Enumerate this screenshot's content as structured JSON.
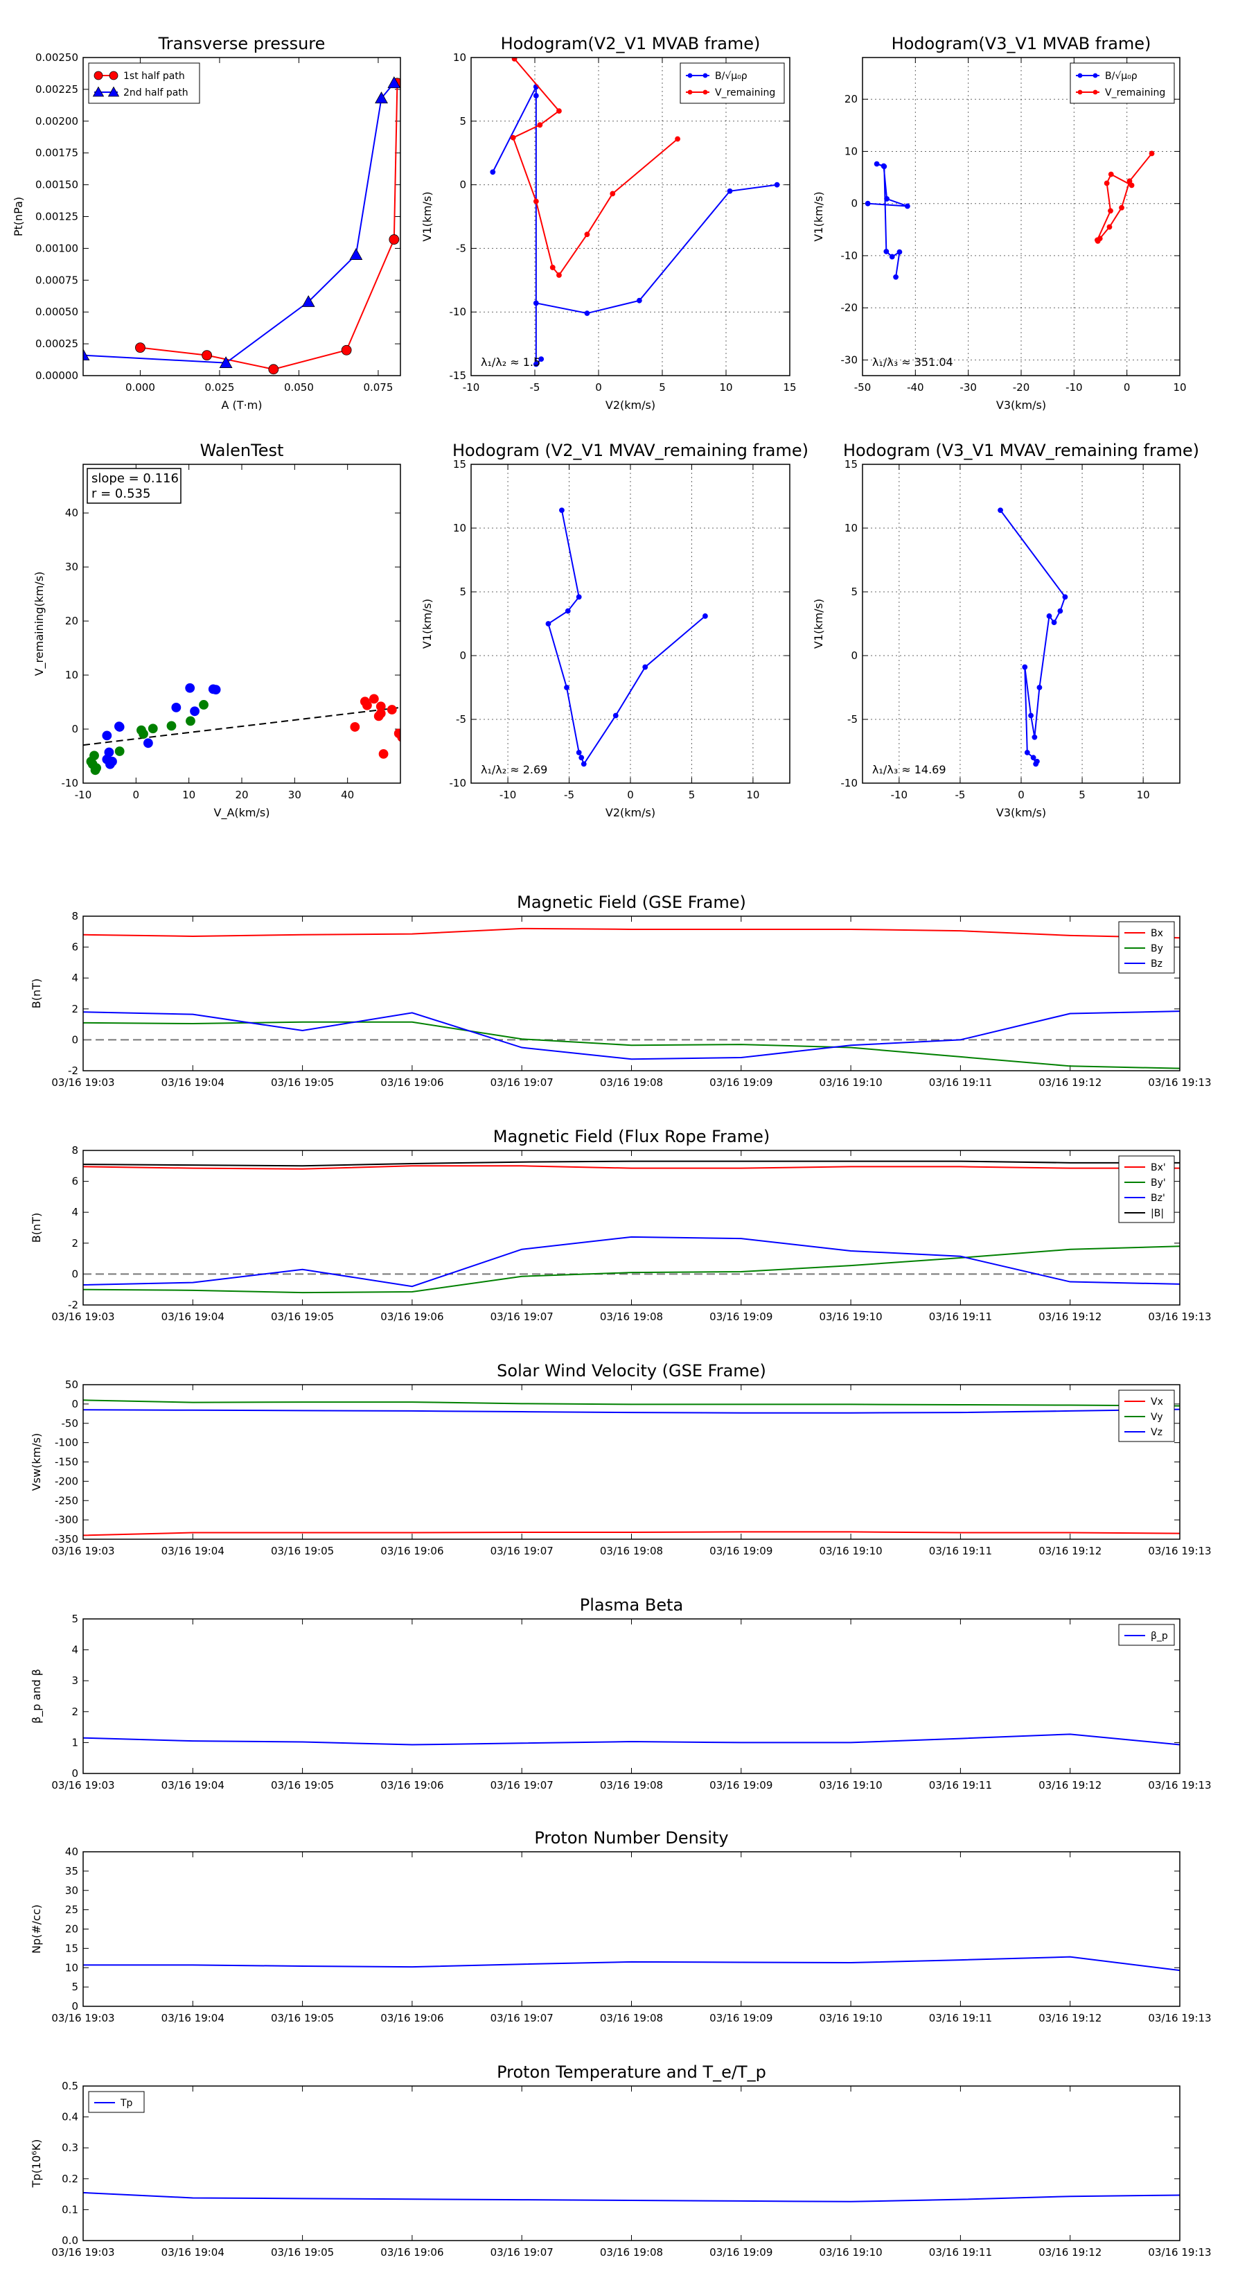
{
  "chart_data": [
    {
      "id": "tp",
      "type": "line",
      "title": "Transverse pressure",
      "xlabel": "A (T·m)",
      "ylabel": "Pt(nPa)",
      "xlim": [
        -0.018,
        0.082
      ],
      "ylim": [
        0,
        0.0025
      ],
      "xticks": [
        0.0,
        0.025,
        0.05,
        0.075
      ],
      "xticklabels": [
        "0.000",
        "0.025",
        "0.050",
        "0.075"
      ],
      "yticks": [
        0,
        0.00025,
        0.0005,
        0.00075,
        0.001,
        0.00125,
        0.0015,
        0.00175,
        0.002,
        0.00225,
        0.0025
      ],
      "yticklabels": [
        "0.00000",
        "0.00025",
        "0.00050",
        "0.00075",
        "0.00100",
        "0.00125",
        "0.00150",
        "0.00175",
        "0.00200",
        "0.00225",
        "0.00250"
      ],
      "grid": false,
      "legend": "upper-left",
      "series": [
        {
          "name": "1st half path",
          "color": "#ff0000",
          "marker": "circle",
          "x": [
            0.081,
            0.08,
            0.065,
            0.042,
            0.021,
            0.0
          ],
          "y": [
            0.0023,
            0.00107,
            0.0002,
            5e-05,
            0.00016,
            0.00022
          ]
        },
        {
          "name": "2nd half path",
          "color": "#0000ff",
          "marker": "triangle",
          "x": [
            -0.018,
            0.027,
            0.053,
            0.068,
            0.076,
            0.08
          ],
          "y": [
            0.00016,
            0.0001,
            0.00058,
            0.00095,
            0.00218,
            0.0023
          ]
        }
      ]
    },
    {
      "id": "h1",
      "type": "line",
      "title": "Hodogram(V2_V1 MVAB frame)",
      "xlabel": "V2(km/s)",
      "ylabel": "V1(km/s)",
      "xlim": [
        -10,
        15
      ],
      "ylim": [
        -15,
        10
      ],
      "xticks": [
        -10,
        -5,
        0,
        5,
        10,
        15
      ],
      "yticks": [
        -15,
        -10,
        -5,
        0,
        5,
        10
      ],
      "grid": true,
      "legend": "upper-right",
      "annotation": "λ₁/λ₂ ≈ 1.5",
      "series": [
        {
          "name": "B/√μ₀ρ",
          "color": "#0000ff",
          "x": [
            14,
            10.3,
            3.2,
            -0.9,
            -4.9,
            -4.9,
            -8.3,
            -4.9,
            -4.9,
            -4.9,
            -4.5
          ],
          "y": [
            0,
            -0.5,
            -9.1,
            -10.1,
            -9.3,
            7.7,
            1,
            7.7,
            7,
            -14.1,
            -13.7
          ]
        },
        {
          "name": "V_remaining",
          "color": "#ff0000",
          "x": [
            -6.6,
            -3.1,
            -4.6,
            -6.7,
            -4.9,
            -3.6,
            -3.1,
            -0.9,
            1.1,
            6.2
          ],
          "y": [
            9.9,
            5.8,
            4.7,
            3.7,
            -1.3,
            -6.5,
            -7.1,
            -3.9,
            -0.7,
            3.6
          ]
        }
      ]
    },
    {
      "id": "h2",
      "type": "line",
      "title": "Hodogram(V3_V1 MVAB frame)",
      "xlabel": "V3(km/s)",
      "ylabel": "V1(km/s)",
      "xlim": [
        -50,
        10
      ],
      "ylim": [
        -33,
        28
      ],
      "xticks": [
        -50,
        -40,
        -30,
        -20,
        -10,
        0,
        10
      ],
      "yticks": [
        -30,
        -20,
        -10,
        0,
        10,
        20
      ],
      "grid": true,
      "legend": "upper-right",
      "annotation": "λ₁/λ₃ ≈ 351.04",
      "series": [
        {
          "name": "B/√μ₀ρ",
          "color": "#0000ff",
          "x": [
            -49,
            -41.5,
            -45.4,
            -46,
            -47.3,
            -45.9,
            -45.5,
            -44.4,
            -43,
            -43.7
          ],
          "y": [
            0,
            -0.5,
            0.9,
            7.2,
            7.6,
            7.1,
            -9.2,
            -10.2,
            -9.3,
            -14.1
          ]
        },
        {
          "name": "V_remaining",
          "color": "#ff0000",
          "x": [
            4.7,
            0.5,
            -1,
            -3.3,
            -5.1,
            -5.5,
            -5.6,
            -3.1,
            -3.8,
            -3,
            0.9
          ],
          "y": [
            9.6,
            4.3,
            -0.8,
            -4.5,
            -6.7,
            -7.2,
            -7,
            -1.4,
            3.9,
            5.6,
            3.5
          ]
        }
      ]
    },
    {
      "id": "wt",
      "type": "scatter",
      "title": "WalenTest",
      "xlabel": "V_A(km/s)",
      "ylabel": "V_remaining(km/s)",
      "xlim": [
        -10,
        50
      ],
      "ylim": [
        -10,
        49
      ],
      "xticks": [
        -10,
        0,
        10,
        20,
        30,
        40
      ],
      "yticks": [
        -10,
        0,
        10,
        20,
        30,
        40
      ],
      "grid": false,
      "stats": {
        "slope": "slope = 0.116",
        "r": "r = 0.535"
      },
      "fit": {
        "slope": 0.116,
        "intercept": -1.8
      },
      "series": [
        {
          "name": "",
          "color": "#008000",
          "x": [
            -8.5,
            -7.9,
            -7.5,
            -8.2,
            -7.7,
            -3.1,
            1,
            3.2,
            6.7,
            10.3,
            12.8,
            1.4
          ],
          "y": [
            -6,
            -4.9,
            -7.2,
            -6.5,
            -7.6,
            -4.1,
            -0.2,
            0.1,
            0.6,
            1.5,
            4.5,
            -0.9
          ]
        },
        {
          "name": "",
          "color": "#0000ff",
          "x": [
            -3.1,
            -5.5,
            -5.5,
            -4.5,
            -4.9,
            -5.1,
            -3.2,
            2.3,
            7.6,
            10.2,
            11.1,
            15.1,
            14.6
          ],
          "y": [
            0.4,
            -1.2,
            -5.6,
            -6,
            -6.5,
            -4.3,
            0.5,
            -2.6,
            4,
            7.6,
            3.3,
            7.3,
            7.4
          ]
        },
        {
          "name": "",
          "color": "#ff0000",
          "x": [
            43.7,
            45,
            43.3,
            46.3,
            48.4,
            46.3,
            45.9,
            41.4,
            50.3,
            49.7,
            46.8
          ],
          "y": [
            4.4,
            5.6,
            5.1,
            4.2,
            3.6,
            2.9,
            2.4,
            0.4,
            -1.5,
            -0.8,
            -4.6
          ]
        }
      ]
    },
    {
      "id": "h3",
      "type": "line",
      "title": "Hodogram (V2_V1 MVAV_remaining frame)",
      "xlabel": "V2(km/s)",
      "ylabel": "V1(km/s)",
      "xlim": [
        -13,
        13
      ],
      "ylim": [
        -10,
        15
      ],
      "xticks": [
        -10,
        -5,
        0,
        5,
        10
      ],
      "yticks": [
        -10,
        -5,
        0,
        5,
        10,
        15
      ],
      "grid": true,
      "annotation": "λ₁/λ₂ ≈ 2.69",
      "series": [
        {
          "name": "",
          "color": "#0000ff",
          "x": [
            6.1,
            1.2,
            -1.2,
            -3.8,
            -4,
            -4.2,
            -5.2,
            -6.7,
            -5.1,
            -4.2,
            -5.6
          ],
          "y": [
            3.1,
            -0.9,
            -4.7,
            -8.5,
            -8,
            -7.6,
            -2.5,
            2.5,
            3.5,
            4.6,
            11.4
          ]
        }
      ]
    },
    {
      "id": "h4",
      "type": "line",
      "title": "Hodogram (V3_V1 MVAV_remaining frame)",
      "xlabel": "V3(km/s)",
      "ylabel": "V1(km/s)",
      "xlim": [
        -13,
        13
      ],
      "ylim": [
        -10,
        15
      ],
      "xticks": [
        -10,
        -5,
        0,
        5,
        10
      ],
      "yticks": [
        -10,
        -5,
        0,
        5,
        10,
        15
      ],
      "grid": true,
      "annotation": "λ₁/λ₃ ≈ 14.69",
      "series": [
        {
          "name": "",
          "color": "#0000ff",
          "x": [
            -1.7,
            3.6,
            3.2,
            2.7,
            2.3,
            1.5,
            1.1,
            0.8,
            0.3,
            0.5,
            1,
            1.2,
            1.3
          ],
          "y": [
            11.4,
            4.6,
            3.5,
            2.6,
            3.1,
            -2.5,
            -6.4,
            -4.7,
            -0.9,
            -7.6,
            -8,
            -8.5,
            -8.3
          ]
        }
      ]
    },
    {
      "id": "mf_gse",
      "type": "line",
      "title": "Magnetic Field (GSE Frame)",
      "ylabel": "B(nT)",
      "x": [
        "03/16 19:03",
        "03/16 19:04",
        "03/16 19:05",
        "03/16 19:06",
        "03/16 19:07",
        "03/16 19:08",
        "03/16 19:09",
        "03/16 19:10",
        "03/16 19:11",
        "03/16 19:12",
        "03/16 19:13"
      ],
      "ylim": [
        -2,
        8
      ],
      "yticks": [
        -2,
        0,
        2,
        4,
        6,
        8
      ],
      "zero_line": true,
      "legend": "upper-right",
      "series": [
        {
          "name": "Bx",
          "color": "#ff0000",
          "values": [
            6.8,
            6.7,
            6.8,
            6.85,
            7.2,
            7.15,
            7.15,
            7.15,
            7.05,
            6.75,
            6.6
          ]
        },
        {
          "name": "By",
          "color": "#008000",
          "values": [
            1.1,
            1.05,
            1.15,
            1.15,
            0.05,
            -0.35,
            -0.3,
            -0.5,
            -1.1,
            -1.7,
            -1.85
          ]
        },
        {
          "name": "Bz",
          "color": "#0000ff",
          "values": [
            1.8,
            1.65,
            0.6,
            1.75,
            -0.5,
            -1.25,
            -1.15,
            -0.35,
            0.0,
            1.7,
            1.85
          ]
        }
      ]
    },
    {
      "id": "mf_fr",
      "type": "line",
      "title": "Magnetic Field (Flux Rope Frame)",
      "ylabel": "B(nT)",
      "x": [
        "03/16 19:03",
        "03/16 19:04",
        "03/16 19:05",
        "03/16 19:06",
        "03/16 19:07",
        "03/16 19:08",
        "03/16 19:09",
        "03/16 19:10",
        "03/16 19:11",
        "03/16 19:12",
        "03/16 19:13"
      ],
      "ylim": [
        -2,
        8
      ],
      "yticks": [
        -2,
        0,
        2,
        4,
        6,
        8
      ],
      "zero_line": true,
      "legend": "upper-right",
      "series": [
        {
          "name": "Bx'",
          "color": "#ff0000",
          "values": [
            6.95,
            6.85,
            6.8,
            7.0,
            7.0,
            6.85,
            6.85,
            6.95,
            6.95,
            6.85,
            6.85
          ]
        },
        {
          "name": "By'",
          "color": "#008000",
          "values": [
            -1.0,
            -1.05,
            -1.2,
            -1.15,
            -0.15,
            0.1,
            0.15,
            0.55,
            1.05,
            1.6,
            1.8
          ]
        },
        {
          "name": "Bz'",
          "color": "#0000ff",
          "values": [
            -0.7,
            -0.55,
            0.3,
            -0.8,
            1.6,
            2.4,
            2.3,
            1.5,
            1.15,
            -0.5,
            -0.65
          ]
        },
        {
          "name": "|B|",
          "color": "#000000",
          "values": [
            7.1,
            7.05,
            7.0,
            7.15,
            7.25,
            7.3,
            7.3,
            7.3,
            7.3,
            7.2,
            7.2
          ]
        }
      ]
    },
    {
      "id": "sw",
      "type": "line",
      "title": "Solar Wind Velocity (GSE Frame)",
      "ylabel": "Vsw(km/s)",
      "x": [
        "03/16 19:03",
        "03/16 19:04",
        "03/16 19:05",
        "03/16 19:06",
        "03/16 19:07",
        "03/16 19:08",
        "03/16 19:09",
        "03/16 19:10",
        "03/16 19:11",
        "03/16 19:12",
        "03/16 19:13"
      ],
      "ylim": [
        -350,
        50
      ],
      "yticks": [
        -350,
        -300,
        -250,
        -200,
        -150,
        -100,
        -50,
        0,
        50
      ],
      "legend": "upper-right",
      "series": [
        {
          "name": "Vx",
          "color": "#ff0000",
          "values": [
            -340,
            -333,
            -333,
            -333,
            -332,
            -332,
            -331,
            -331,
            -333,
            -333,
            -335
          ]
        },
        {
          "name": "Vy",
          "color": "#008000",
          "values": [
            10,
            4,
            5,
            5,
            1,
            -1,
            -1,
            -1,
            -2,
            -3,
            -5
          ]
        },
        {
          "name": "Vz",
          "color": "#0000ff",
          "values": [
            -15,
            -16,
            -17,
            -18,
            -20,
            -22,
            -23,
            -23,
            -22,
            -18,
            -14
          ]
        }
      ]
    },
    {
      "id": "pb",
      "type": "line",
      "title": "Plasma Beta",
      "ylabel": "β_p and β",
      "x": [
        "03/16 19:03",
        "03/16 19:04",
        "03/16 19:05",
        "03/16 19:06",
        "03/16 19:07",
        "03/16 19:08",
        "03/16 19:09",
        "03/16 19:10",
        "03/16 19:11",
        "03/16 19:12",
        "03/16 19:13"
      ],
      "ylim": [
        0,
        5
      ],
      "yticks": [
        0,
        1,
        2,
        3,
        4,
        5
      ],
      "legend": "upper-right",
      "series": [
        {
          "name": "β_p",
          "color": "#0000ff",
          "values": [
            1.15,
            1.05,
            1.02,
            0.93,
            0.98,
            1.03,
            1.0,
            1.0,
            1.13,
            1.27,
            0.93
          ]
        }
      ]
    },
    {
      "id": "np",
      "type": "line",
      "title": "Proton Number Density",
      "ylabel": "Np(#/cc)",
      "x": [
        "03/16 19:03",
        "03/16 19:04",
        "03/16 19:05",
        "03/16 19:06",
        "03/16 19:07",
        "03/16 19:08",
        "03/16 19:09",
        "03/16 19:10",
        "03/16 19:11",
        "03/16 19:12",
        "03/16 19:13"
      ],
      "ylim": [
        0,
        40
      ],
      "yticks": [
        0,
        5,
        10,
        15,
        20,
        25,
        30,
        35,
        40
      ],
      "series": [
        {
          "name": "",
          "color": "#0000ff",
          "values": [
            10.7,
            10.7,
            10.4,
            10.2,
            10.9,
            11.5,
            11.4,
            11.3,
            12.0,
            12.8,
            9.3
          ]
        }
      ]
    },
    {
      "id": "tpr",
      "type": "line",
      "title": "Proton Temperature and T_e/T_p",
      "ylabel": "Tp(10⁶K)",
      "x": [
        "03/16 19:03",
        "03/16 19:04",
        "03/16 19:05",
        "03/16 19:06",
        "03/16 19:07",
        "03/16 19:08",
        "03/16 19:09",
        "03/16 19:10",
        "03/16 19:11",
        "03/16 19:12",
        "03/16 19:13"
      ],
      "ylim": [
        0,
        0.5
      ],
      "yticks": [
        0.0,
        0.1,
        0.2,
        0.3,
        0.4,
        0.5
      ],
      "legend": "upper-left",
      "series": [
        {
          "name": "Tp",
          "color": "#0000ff",
          "values": [
            0.155,
            0.138,
            0.136,
            0.134,
            0.132,
            0.13,
            0.128,
            0.126,
            0.133,
            0.143,
            0.147
          ]
        }
      ]
    }
  ]
}
